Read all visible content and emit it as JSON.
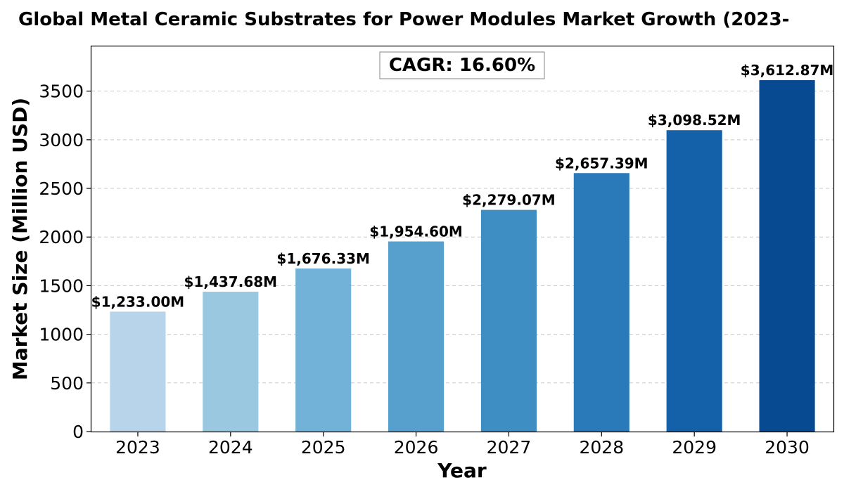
{
  "chart_data": {
    "type": "bar",
    "title": "Global Metal Ceramic Substrates for Power Modules Market Growth (2023-",
    "xlabel": "Year",
    "ylabel": "Market Size (Million USD)",
    "categories": [
      "2023",
      "2024",
      "2025",
      "2026",
      "2027",
      "2028",
      "2029",
      "2030"
    ],
    "values": [
      1233.0,
      1437.68,
      1676.33,
      1954.6,
      2279.07,
      2657.39,
      3098.52,
      3612.87
    ],
    "data_labels": [
      "$1,233.00M",
      "$1,437.68M",
      "$1,676.33M",
      "$1,954.60M",
      "$2,279.07M",
      "$2,657.39M",
      "$3,098.52M",
      "$3,612.87M"
    ],
    "ylim": [
      0,
      3960
    ],
    "yticks": [
      0,
      500,
      1000,
      1500,
      2000,
      2500,
      3000,
      3500
    ],
    "grid": "y-dashed",
    "bar_colors": [
      "#b7d4ea",
      "#9ac8e0",
      "#73b2d8",
      "#57a0ce",
      "#3e8ec4",
      "#2a7aba",
      "#1561a9",
      "#084a91"
    ],
    "annotation": "CAGR: 16.60%"
  }
}
